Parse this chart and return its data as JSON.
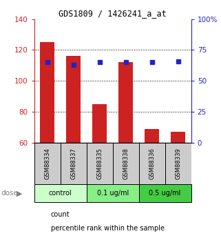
{
  "title": "GDS1809 / 1426241_a_at",
  "samples": [
    "GSM88334",
    "GSM88337",
    "GSM88335",
    "GSM88338",
    "GSM88336",
    "GSM88339"
  ],
  "bar_values": [
    125,
    116,
    85,
    112,
    69,
    67
  ],
  "dot_values": [
    65,
    63,
    65,
    65,
    65,
    66
  ],
  "bar_bottom": 60,
  "ylim_left": [
    60,
    140
  ],
  "ylim_right": [
    0,
    100
  ],
  "yticks_left": [
    60,
    80,
    100,
    120,
    140
  ],
  "yticks_right": [
    0,
    25,
    50,
    75,
    100
  ],
  "ytick_labels_right": [
    "0",
    "25",
    "50",
    "75",
    "100%"
  ],
  "bar_color": "#cc2222",
  "dot_color": "#2222cc",
  "groups": [
    {
      "label": "control",
      "span": [
        0,
        2
      ],
      "color": "#ccffcc"
    },
    {
      "label": "0.1 ug/ml",
      "span": [
        2,
        4
      ],
      "color": "#88ee88"
    },
    {
      "label": "0.5 ug/ml",
      "span": [
        4,
        6
      ],
      "color": "#44cc44"
    }
  ],
  "dose_label": "dose",
  "legend_count": "count",
  "legend_pct": "percentile rank within the sample",
  "grid_color": "black",
  "sample_bg": "#cccccc",
  "axis_left_color": "#cc2222",
  "axis_right_color": "#2222cc"
}
